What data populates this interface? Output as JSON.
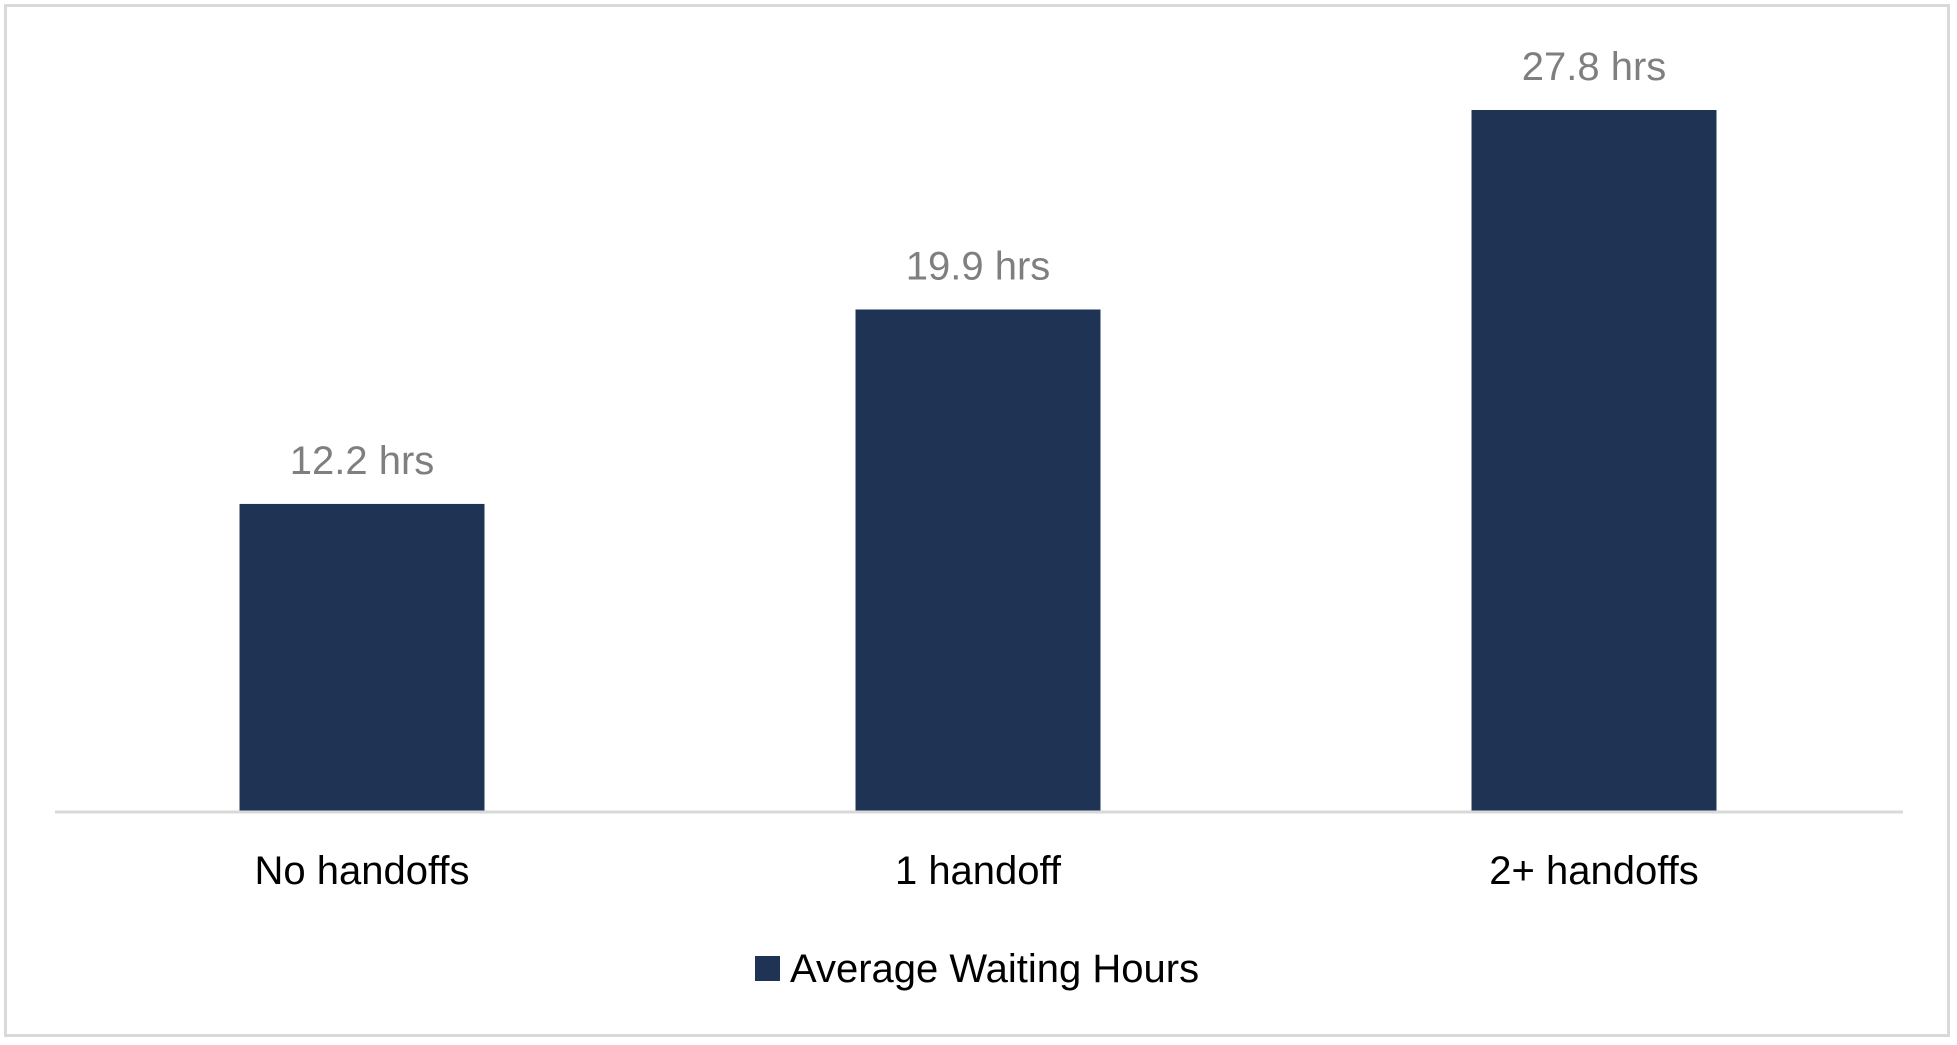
{
  "chart_data": {
    "type": "bar",
    "categories": [
      "No handoffs",
      "1 handoff",
      "2+ handoffs"
    ],
    "series": [
      {
        "name": "Average Waiting Hours",
        "values": [
          12.2,
          19.9,
          27.8
        ],
        "color": "#1f3454"
      }
    ],
    "data_labels": [
      "12.2 hrs",
      "19.9 hrs",
      "27.8 hrs"
    ],
    "title": "",
    "xlabel": "",
    "ylabel": "",
    "ylim": [
      0,
      28.6
    ],
    "grid": false,
    "legend_position": "bottom",
    "axis_color": "#d9d9d9",
    "label_color": "#7f7f7f"
  }
}
